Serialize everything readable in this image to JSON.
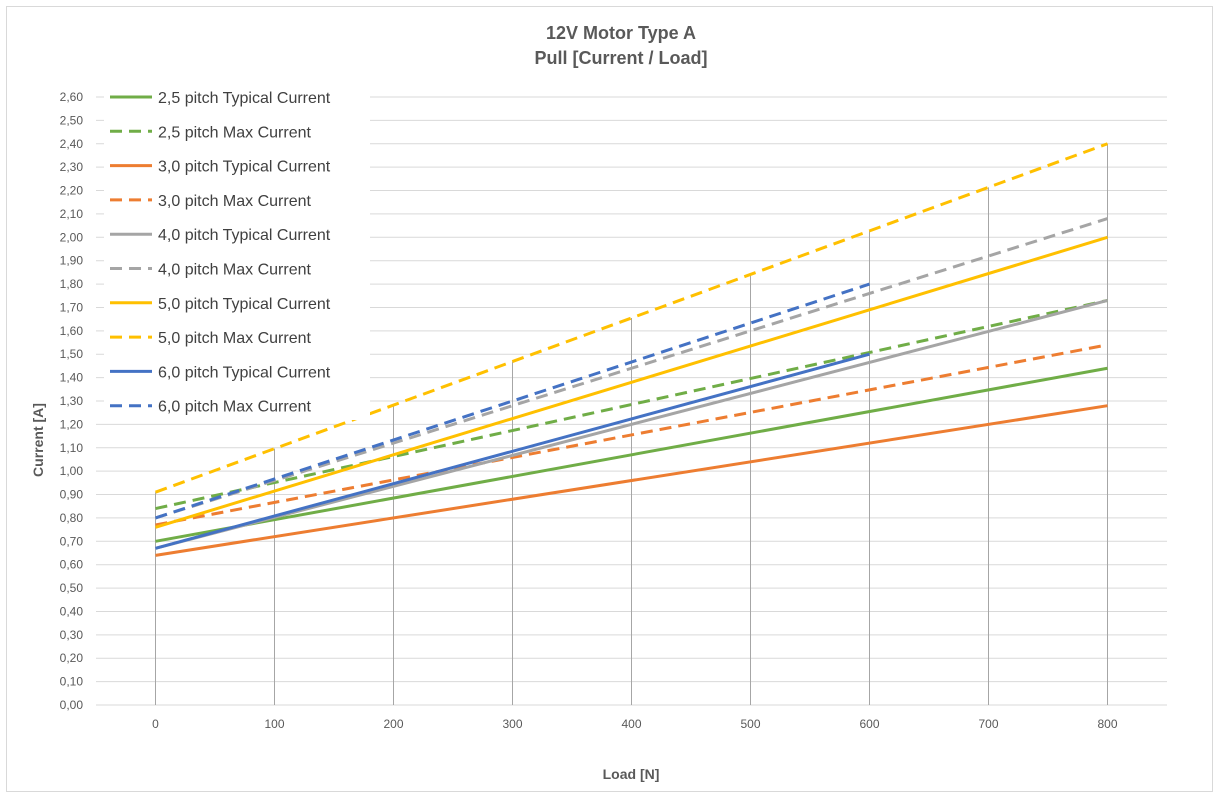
{
  "chart_data": {
    "type": "line",
    "title": "12V Motor Type A",
    "subtitle": "Pull [Current / Load]",
    "xlabel": "Load [N]",
    "ylabel": "Current [A]",
    "x_ticks": [
      "0",
      "100",
      "200",
      "300",
      "400",
      "500",
      "600",
      "700",
      "800"
    ],
    "y_ticks": [
      "0,00",
      "0,10",
      "0,20",
      "0,30",
      "0,40",
      "0,50",
      "0,60",
      "0,70",
      "0,80",
      "0,90",
      "1,00",
      "1,10",
      "1,20",
      "1,30",
      "1,40",
      "1,50",
      "1,60",
      "1,70",
      "1,80",
      "1,90",
      "2,00",
      "2,10",
      "2,20",
      "2,30",
      "2,40",
      "2,50",
      "2,60"
    ],
    "xlim": [
      -50,
      850
    ],
    "ylim": [
      0,
      2.6
    ],
    "grid": "horizontal",
    "drop_lines": true,
    "legend_position": "top-left",
    "series": [
      {
        "name": "2,5 pitch  Typical Current",
        "color": "#70ad47",
        "dash": false,
        "x": [
          0,
          800
        ],
        "values": [
          0.7,
          1.44
        ]
      },
      {
        "name": "2,5 pitch  Max Current",
        "color": "#70ad47",
        "dash": true,
        "x": [
          0,
          800
        ],
        "values": [
          0.84,
          1.73
        ]
      },
      {
        "name": "3,0 pitch  Typical Current",
        "color": "#ed7d31",
        "dash": false,
        "x": [
          0,
          800
        ],
        "values": [
          0.64,
          1.28
        ]
      },
      {
        "name": "3,0 pitch  Max Current",
        "color": "#ed7d31",
        "dash": true,
        "x": [
          0,
          800
        ],
        "values": [
          0.77,
          1.54
        ]
      },
      {
        "name": "4,0 pitch  Typical Current",
        "color": "#a5a5a5",
        "dash": false,
        "x": [
          0,
          800
        ],
        "values": [
          0.67,
          1.73
        ]
      },
      {
        "name": "4,0 pitch  Max Current",
        "color": "#a5a5a5",
        "dash": true,
        "x": [
          0,
          800
        ],
        "values": [
          0.8,
          2.08
        ]
      },
      {
        "name": "5,0 pitch  Typical Current",
        "color": "#ffc000",
        "dash": false,
        "x": [
          0,
          800
        ],
        "values": [
          0.76,
          2.0
        ]
      },
      {
        "name": "5,0 pitch  Max Current",
        "color": "#ffc000",
        "dash": true,
        "x": [
          0,
          800
        ],
        "values": [
          0.91,
          2.4
        ]
      },
      {
        "name": "6,0 pitch  Typical Current",
        "color": "#4472c4",
        "dash": false,
        "x": [
          0,
          600
        ],
        "values": [
          0.67,
          1.5
        ]
      },
      {
        "name": "6,0 pitch  Max Current",
        "color": "#4472c4",
        "dash": true,
        "x": [
          0,
          600
        ],
        "values": [
          0.8,
          1.8
        ]
      }
    ]
  }
}
